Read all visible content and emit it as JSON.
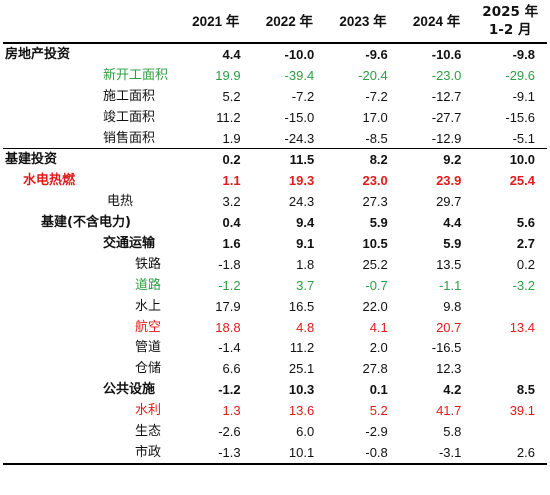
{
  "header": {
    "y2021": "2021 年",
    "y2022": "2022 年",
    "y2023": "2023 年",
    "y2024": "2024 年",
    "y2025_line1": "2025 年",
    "y2025_line2": "1-2 月"
  },
  "rows": [
    {
      "label": "房地产投资",
      "v": [
        "4.4",
        "-10.0",
        "-9.6",
        "-10.6",
        "-9.8"
      ]
    },
    {
      "label": "新开工面积",
      "v": [
        "19.9",
        "-39.4",
        "-20.4",
        "-23.0",
        "-29.6"
      ]
    },
    {
      "label": "施工面积",
      "v": [
        "5.2",
        "-7.2",
        "-7.2",
        "-12.7",
        "-9.1"
      ]
    },
    {
      "label": "竣工面积",
      "v": [
        "11.2",
        "-15.0",
        "17.0",
        "-27.7",
        "-15.6"
      ]
    },
    {
      "label": "销售面积",
      "v": [
        "1.9",
        "-24.3",
        "-8.5",
        "-12.9",
        "-5.1"
      ]
    },
    {
      "label": "基建投资",
      "v": [
        "0.2",
        "11.5",
        "8.2",
        "9.2",
        "10.0"
      ]
    },
    {
      "label": "水电热燃",
      "v": [
        "1.1",
        "19.3",
        "23.0",
        "23.9",
        "25.4"
      ]
    },
    {
      "label": "电热",
      "v": [
        "3.2",
        "24.3",
        "27.3",
        "29.7",
        ""
      ]
    },
    {
      "label": "基建(不含电力)",
      "v": [
        "0.4",
        "9.4",
        "5.9",
        "4.4",
        "5.6"
      ]
    },
    {
      "label": "交通运输",
      "v": [
        "1.6",
        "9.1",
        "10.5",
        "5.9",
        "2.7"
      ]
    },
    {
      "label": "铁路",
      "v": [
        "-1.8",
        "1.8",
        "25.2",
        "13.5",
        "0.2"
      ]
    },
    {
      "label": "道路",
      "v": [
        "-1.2",
        "3.7",
        "-0.7",
        "-1.1",
        "-3.2"
      ]
    },
    {
      "label": "水上",
      "v": [
        "17.9",
        "16.5",
        "22.0",
        "9.8",
        ""
      ]
    },
    {
      "label": "航空",
      "v": [
        "18.8",
        "4.8",
        "4.1",
        "20.7",
        "13.4"
      ]
    },
    {
      "label": "管道",
      "v": [
        "-1.4",
        "11.2",
        "2.0",
        "-16.5",
        ""
      ]
    },
    {
      "label": "仓储",
      "v": [
        "6.6",
        "25.1",
        "27.8",
        "12.3",
        ""
      ]
    },
    {
      "label": "公共设施",
      "v": [
        "-1.2",
        "10.3",
        "0.1",
        "4.2",
        "8.5"
      ]
    },
    {
      "label": "水利",
      "v": [
        "1.3",
        "13.6",
        "5.2",
        "41.7",
        "39.1"
      ]
    },
    {
      "label": "生态",
      "v": [
        "-2.6",
        "6.0",
        "-2.9",
        "5.8",
        ""
      ]
    },
    {
      "label": "市政",
      "v": [
        "-1.3",
        "10.1",
        "-0.8",
        "-3.1",
        "2.6"
      ]
    }
  ],
  "colors": {
    "text": "#111111",
    "green": "#2e9e44",
    "red": "#e01b1b",
    "rule": "#000000"
  }
}
